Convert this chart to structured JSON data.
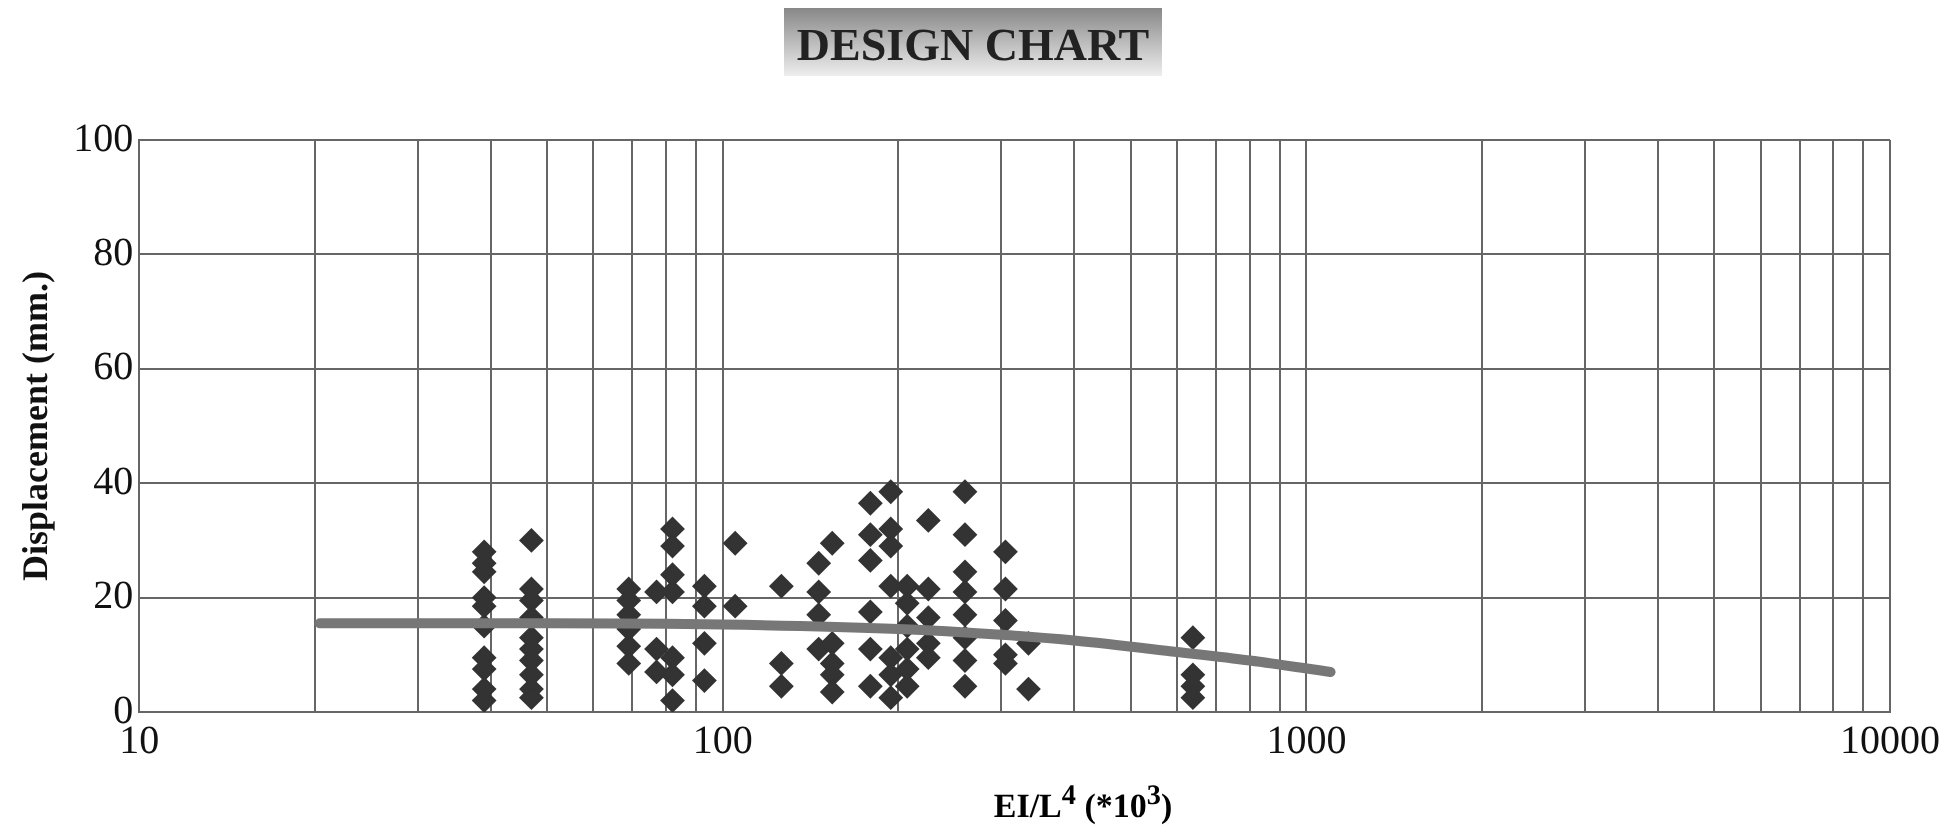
{
  "chart_data": {
    "type": "scatter",
    "title": "DESIGN CHART",
    "xlabel": "EI/L$^{4}$ (*10$^{3}$)",
    "ylabel": "Displacement (mm.)",
    "log": "x",
    "grid": true,
    "legend": false,
    "marker": "diamond",
    "xlim": [
      10,
      10000
    ],
    "ylim": [
      0,
      100
    ],
    "xticks": [
      10,
      {
        "value": 20,
        "label": null
      },
      {
        "value": 30,
        "label": null
      },
      {
        "value": 40,
        "label": null
      },
      {
        "value": 50,
        "label": null
      },
      {
        "value": 60,
        "label": null
      },
      {
        "value": 70,
        "label": null
      },
      {
        "value": 80,
        "label": null
      },
      {
        "value": 90,
        "label": null
      },
      100,
      {
        "value": 200,
        "label": null
      },
      {
        "value": 300,
        "label": null
      },
      {
        "value": 400,
        "label": null
      },
      {
        "value": 500,
        "label": null
      },
      {
        "value": 600,
        "label": null
      },
      {
        "value": 700,
        "label": null
      },
      {
        "value": 800,
        "label": null
      },
      {
        "value": 900,
        "label": null
      },
      1000,
      {
        "value": 2000,
        "label": null
      },
      {
        "value": 3000,
        "label": null
      },
      {
        "value": 4000,
        "label": null
      },
      {
        "value": 5000,
        "label": null
      },
      {
        "value": 6000,
        "label": null
      },
      {
        "value": 7000,
        "label": null
      },
      {
        "value": 8000,
        "label": null
      },
      {
        "value": 9000,
        "label": null
      },
      10000
    ],
    "yticks": [
      0,
      20,
      40,
      60,
      80,
      100
    ],
    "series": [
      {
        "color": "#333333",
        "x": [
          39,
          39,
          39,
          39,
          39,
          39,
          39,
          39,
          39,
          39,
          47,
          47,
          47,
          47,
          47,
          47,
          47,
          47,
          47,
          47,
          69,
          69,
          69,
          69,
          69,
          69,
          77,
          77,
          77,
          82,
          82,
          82,
          82,
          82,
          82,
          82,
          93,
          93,
          93,
          93,
          105,
          105,
          126,
          126,
          126,
          146,
          146,
          146,
          146,
          154,
          154,
          154,
          154,
          154,
          179,
          179,
          179,
          179,
          179,
          179,
          194,
          194,
          194,
          194,
          194,
          194,
          194,
          207,
          207,
          207,
          207,
          207,
          207,
          225,
          225,
          225,
          225,
          225,
          260,
          260,
          260,
          260,
          260,
          260,
          260,
          260,
          305,
          305,
          305,
          305,
          305,
          334,
          334,
          639,
          639,
          639,
          639
        ],
        "values": [
          28,
          26,
          24.5,
          20,
          18.5,
          15,
          9.5,
          7.5,
          4,
          2,
          30,
          21.5,
          19.5,
          16.5,
          13,
          11,
          9,
          6.5,
          4,
          2.5,
          21.5,
          19.5,
          17,
          14.5,
          11.5,
          8.5,
          21,
          11,
          7,
          32,
          29,
          24,
          21,
          9.5,
          6.5,
          2,
          22,
          18.5,
          12,
          5.5,
          29.5,
          18.5,
          22,
          8.5,
          4.5,
          26,
          21,
          17,
          11,
          29.5,
          12,
          8.5,
          6.5,
          3.5,
          36.5,
          31,
          26.5,
          17.5,
          11,
          4.5,
          38.5,
          32,
          29,
          22,
          9.5,
          6.5,
          2.5,
          22,
          19,
          15,
          11,
          7.5,
          4.5,
          33.5,
          21.5,
          16.5,
          12,
          9.5,
          38.5,
          31,
          24.5,
          21,
          17,
          13,
          9,
          4.5,
          28,
          21.5,
          16,
          10,
          8.5,
          12,
          4,
          13,
          6.5,
          4.5,
          2.5
        ]
      },
      {
        "type": "line",
        "color": "#777777",
        "marker": "none",
        "x": [
          20.4,
          50,
          100,
          200,
          300,
          400,
          600,
          800,
          1100
        ],
        "values": [
          15.5,
          15.5,
          15.3,
          14.5,
          13.5,
          12.5,
          10.5,
          9,
          7
        ]
      }
    ]
  }
}
